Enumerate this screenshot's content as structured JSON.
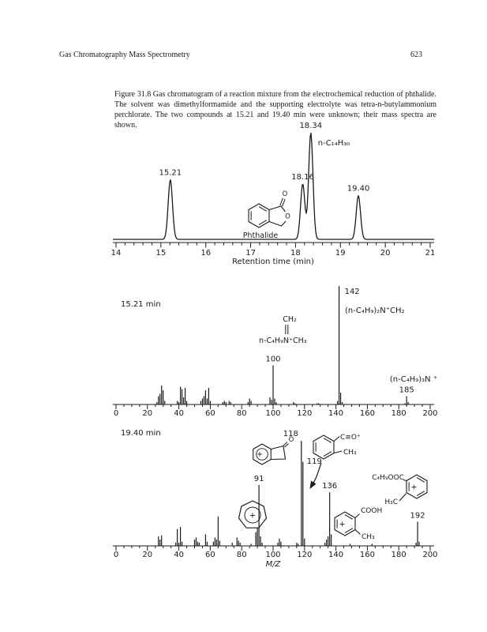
{
  "page": {
    "running_head": "Gas Chromatography Mass Spectrometry",
    "page_number": "623"
  },
  "caption": "Figure 31.8  Gas chromatogram of a reaction mixture from the electrochemical reduction of phthalide. The solvent was dimethylformamide and the supporting electrolyte was tetra-n-butylammonium perchlorate. The two compounds at 15.21 and 19.40 min were unknown; their mass spectra are shown.",
  "colors": {
    "ink": "#1a1a1a",
    "paper": "#ffffff"
  },
  "chart_data": [
    {
      "id": "chromatogram",
      "type": "line",
      "title": "",
      "xlabel": "Retention time (min)",
      "ylabel": "",
      "xlim": [
        14,
        21
      ],
      "x_major_step": 1,
      "x_minor_step": 0.2,
      "grid": false,
      "peaks": [
        {
          "rt": 15.21,
          "rel_height": 0.56,
          "label": "15.21"
        },
        {
          "rt": 18.16,
          "rel_height": 0.52,
          "label": "18.16"
        },
        {
          "rt": 18.34,
          "rel_height": 1.0,
          "label": "18.34",
          "compound": "n-C₁₄H₃₀"
        },
        {
          "rt": 19.4,
          "rel_height": 0.41,
          "label": "19.40"
        }
      ],
      "structure": {
        "name": "phthalide",
        "label": "Phthalide",
        "ring_oxygen": "O",
        "carbonyl_oxygen": "O"
      }
    },
    {
      "id": "spectrum-15-21",
      "type": "bar",
      "title": "15.21 min",
      "xlabel": "",
      "xlim": [
        0,
        200
      ],
      "ylim": [
        0,
        100
      ],
      "x_major_step": 20,
      "x_minor_step": 5,
      "grid": false,
      "peaks": [
        [
          26,
          2
        ],
        [
          27,
          7
        ],
        [
          28,
          9
        ],
        [
          29,
          16
        ],
        [
          30,
          12
        ],
        [
          31,
          3
        ],
        [
          39,
          3
        ],
        [
          40,
          2
        ],
        [
          41,
          15
        ],
        [
          42,
          13
        ],
        [
          43,
          6
        ],
        [
          44,
          14
        ],
        [
          45,
          3
        ],
        [
          54,
          3
        ],
        [
          55,
          5
        ],
        [
          56,
          7
        ],
        [
          57,
          12
        ],
        [
          58,
          5
        ],
        [
          59,
          14
        ],
        [
          60,
          3
        ],
        [
          68,
          2
        ],
        [
          69,
          3
        ],
        [
          70,
          2
        ],
        [
          72,
          3
        ],
        [
          73,
          2
        ],
        [
          84,
          2
        ],
        [
          85,
          5
        ],
        [
          86,
          3
        ],
        [
          98,
          6
        ],
        [
          99,
          4
        ],
        [
          100,
          33
        ],
        [
          101,
          5
        ],
        [
          102,
          2
        ],
        [
          113,
          2
        ],
        [
          114,
          1
        ],
        [
          128,
          1
        ],
        [
          129,
          1
        ],
        [
          141,
          3
        ],
        [
          142,
          100
        ],
        [
          143,
          10
        ],
        [
          144,
          2
        ],
        [
          184,
          1
        ],
        [
          185,
          7
        ],
        [
          186,
          2
        ]
      ],
      "peak_labels": [
        {
          "mz": 100,
          "text": "100"
        },
        {
          "mz": 142,
          "text": "142"
        },
        {
          "mz": 185,
          "text": "185"
        }
      ],
      "fragment_annotations": [
        {
          "id": "frag-142",
          "text": "(n-C₄H₉)₂N⁺CH₂"
        },
        {
          "id": "frag-185",
          "text": "(n-C₄H₉)₃N ⁺"
        }
      ],
      "structure": {
        "name": "butyl-methyl-methylene-iminium",
        "top": "CH₂",
        "formula": "n-C₄H₉N⁺CH₃"
      }
    },
    {
      "id": "spectrum-19-40",
      "type": "bar",
      "title": "19.40 min",
      "xlabel": "M/Z",
      "xlim": [
        0,
        200
      ],
      "ylim": [
        0,
        100
      ],
      "x_major_step": 20,
      "x_minor_step": 5,
      "grid": false,
      "peaks": [
        [
          27,
          9
        ],
        [
          28,
          6
        ],
        [
          29,
          10
        ],
        [
          38,
          3
        ],
        [
          39,
          16
        ],
        [
          40,
          3
        ],
        [
          41,
          18
        ],
        [
          42,
          4
        ],
        [
          50,
          6
        ],
        [
          51,
          8
        ],
        [
          52,
          4
        ],
        [
          53,
          3
        ],
        [
          57,
          11
        ],
        [
          58,
          4
        ],
        [
          62,
          4
        ],
        [
          63,
          8
        ],
        [
          64,
          6
        ],
        [
          65,
          28
        ],
        [
          66,
          5
        ],
        [
          74,
          3
        ],
        [
          77,
          8
        ],
        [
          78,
          5
        ],
        [
          79,
          3
        ],
        [
          86,
          2
        ],
        [
          89,
          13
        ],
        [
          90,
          17
        ],
        [
          91,
          58
        ],
        [
          92,
          9
        ],
        [
          93,
          3
        ],
        [
          103,
          3
        ],
        [
          104,
          7
        ],
        [
          105,
          4
        ],
        [
          115,
          3
        ],
        [
          116,
          2
        ],
        [
          118,
          100
        ],
        [
          119,
          80
        ],
        [
          120,
          7
        ],
        [
          133,
          3
        ],
        [
          134,
          6
        ],
        [
          135,
          9
        ],
        [
          136,
          51
        ],
        [
          137,
          11
        ],
        [
          149,
          2
        ],
        [
          163,
          2
        ],
        [
          191,
          3
        ],
        [
          192,
          23
        ],
        [
          193,
          4
        ]
      ],
      "peak_labels": [
        {
          "mz": 91,
          "text": "91"
        },
        {
          "mz": 118,
          "text": "118"
        },
        {
          "mz": 119,
          "text": "119"
        },
        {
          "mz": 136,
          "text": "136"
        },
        {
          "mz": 192,
          "text": "192"
        }
      ],
      "structures": {
        "benzocyclobutenone": {
          "charge": "+",
          "oxygen": "O"
        },
        "methylbenzoyl_cation": {
          "acylium": "C≡O⁺",
          "methyl": "CH₃"
        },
        "tropylium": {
          "charge": "+"
        },
        "methylbenzoic_acid_cation": {
          "charge": "+",
          "acid": "COOH",
          "methyl": "CH₃"
        },
        "butyl_methylbenzoate_cation": {
          "charge": "+",
          "ester": "C₄H₉OOC",
          "methyl": "H₃C"
        }
      }
    }
  ]
}
